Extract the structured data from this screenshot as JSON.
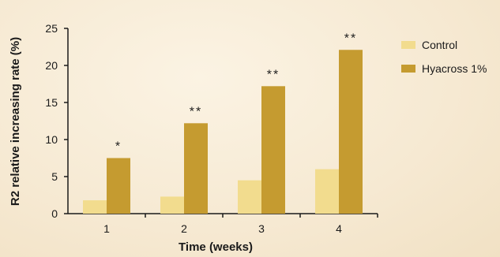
{
  "chart_data": {
    "type": "bar",
    "categories": [
      "1",
      "2",
      "3",
      "4"
    ],
    "series": [
      {
        "name": "Control",
        "values": [
          1.8,
          2.3,
          4.5,
          6.0
        ],
        "color": "#f2dc8e"
      },
      {
        "name": "Hyacross 1%",
        "values": [
          7.5,
          12.2,
          17.2,
          22.1
        ],
        "color": "#c59b30"
      }
    ],
    "significance": [
      "*",
      "**",
      "**",
      "**"
    ],
    "xlabel": "Time (weeks)",
    "ylabel": "R2 relative increasing rate (%)",
    "ylim": [
      0,
      25
    ],
    "yticks": [
      0,
      5,
      10,
      15,
      20,
      25
    ],
    "grid": false,
    "legend_position": "right"
  }
}
